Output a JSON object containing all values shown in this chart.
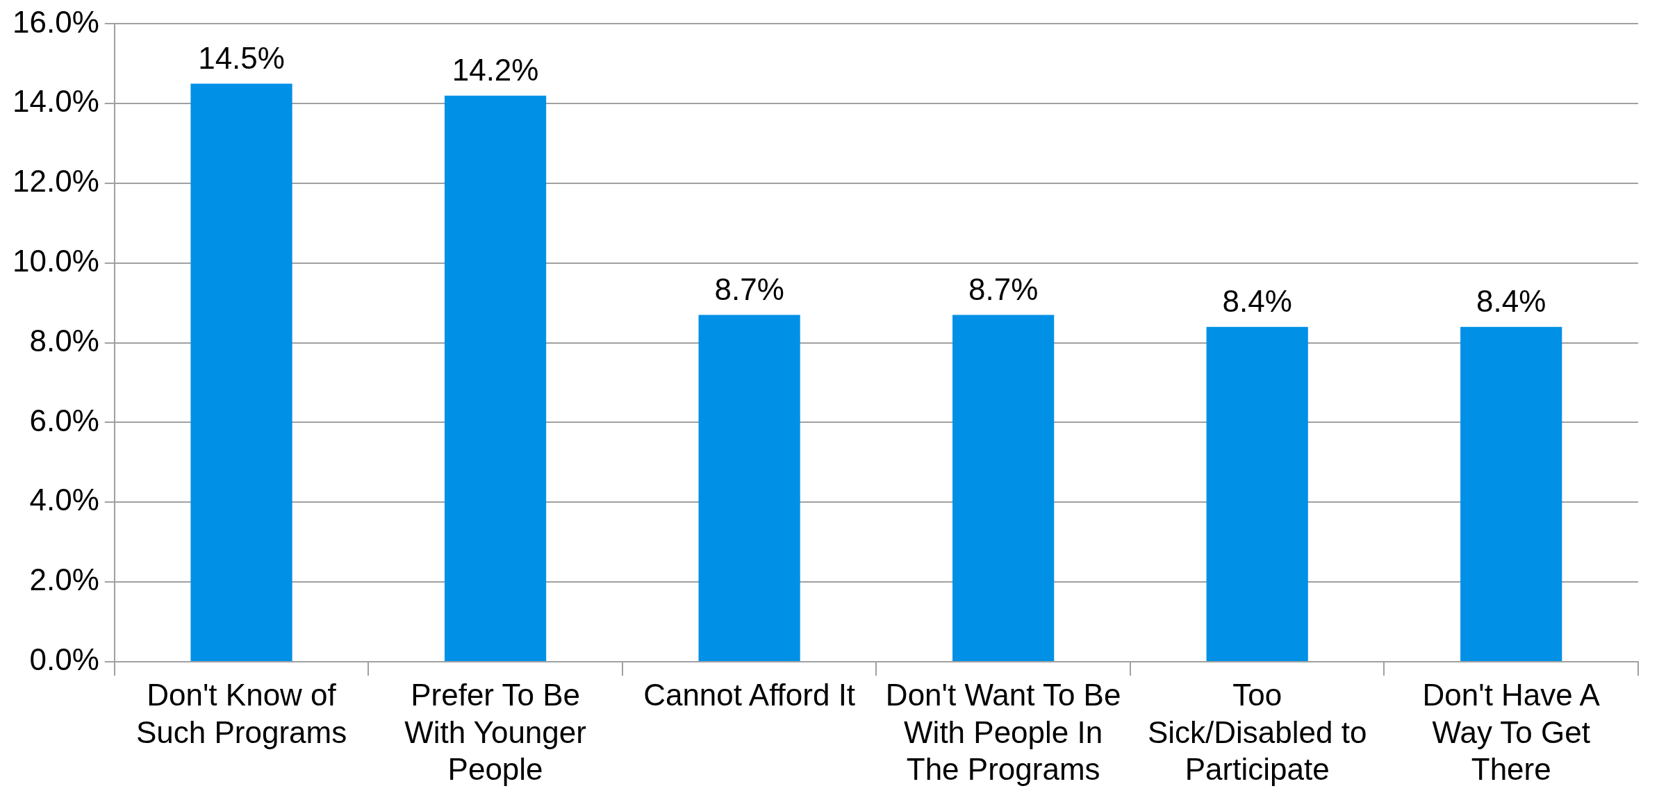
{
  "chart_data": {
    "type": "bar",
    "categories": [
      "Don't Know of Such Programs",
      "Prefer To Be With Younger People",
      "Cannot Afford It",
      "Don't Want To Be With People In The Programs",
      "Too Sick/Disabled to Participate",
      "Don't Have A Way To Get There"
    ],
    "values": [
      14.5,
      14.2,
      8.7,
      8.7,
      8.4,
      8.4
    ],
    "value_labels": [
      "14.5%",
      "14.2%",
      "8.7%",
      "8.7%",
      "8.4%",
      "8.4%"
    ],
    "color": "#0090e6",
    "ylim": [
      0,
      16
    ],
    "yticks": [
      {
        "value": 0,
        "label": "0.0%"
      },
      {
        "value": 2,
        "label": "2.0%"
      },
      {
        "value": 4,
        "label": "4.0%"
      },
      {
        "value": 6,
        "label": "6.0%"
      },
      {
        "value": 8,
        "label": "8.0%"
      },
      {
        "value": 10,
        "label": "10.0%"
      },
      {
        "value": 12,
        "label": "12.0%"
      },
      {
        "value": 14,
        "label": "14.0%"
      },
      {
        "value": 16,
        "label": "16.0%"
      }
    ],
    "grid": "y",
    "legend": false
  }
}
